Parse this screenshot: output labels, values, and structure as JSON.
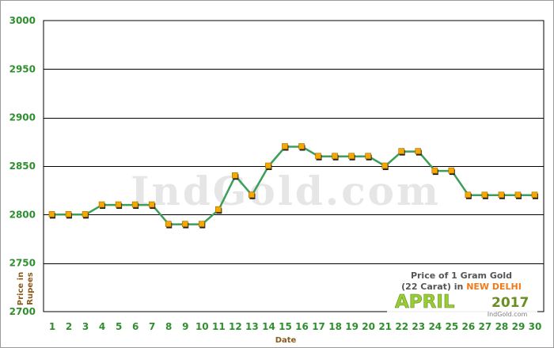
{
  "chart_data": {
    "type": "line",
    "watermark": "IndGold.com",
    "xlabel": "Date",
    "ylabel_lines": [
      "Price in",
      "Rupees"
    ],
    "ylim": [
      2700,
      3000
    ],
    "yticks": [
      2700,
      2750,
      2800,
      2850,
      2900,
      2950,
      3000
    ],
    "grid": true,
    "x": [
      1,
      2,
      3,
      4,
      5,
      6,
      7,
      8,
      9,
      10,
      11,
      12,
      13,
      14,
      15,
      16,
      17,
      18,
      19,
      20,
      21,
      22,
      23,
      24,
      25,
      26,
      27,
      28,
      29,
      30
    ],
    "series": [
      {
        "values": [
          2800,
          2800,
          2800,
          2810,
          2810,
          2810,
          2810,
          2790,
          2790,
          2790,
          2805,
          2840,
          2820,
          2850,
          2870,
          2870,
          2860,
          2860,
          2860,
          2860,
          2850,
          2865,
          2865,
          2845,
          2845,
          2820,
          2820,
          2820,
          2820,
          2820
        ],
        "line_color": "#3c9e5a",
        "marker_color": "#f5a800"
      }
    ],
    "info_box": {
      "line1": "Price of 1 Gram Gold",
      "line2_prefix": "(22 Carat) in ",
      "city": "NEW DELHI",
      "month": "APRIL",
      "year": "2017",
      "site": "IndGold.com"
    }
  }
}
